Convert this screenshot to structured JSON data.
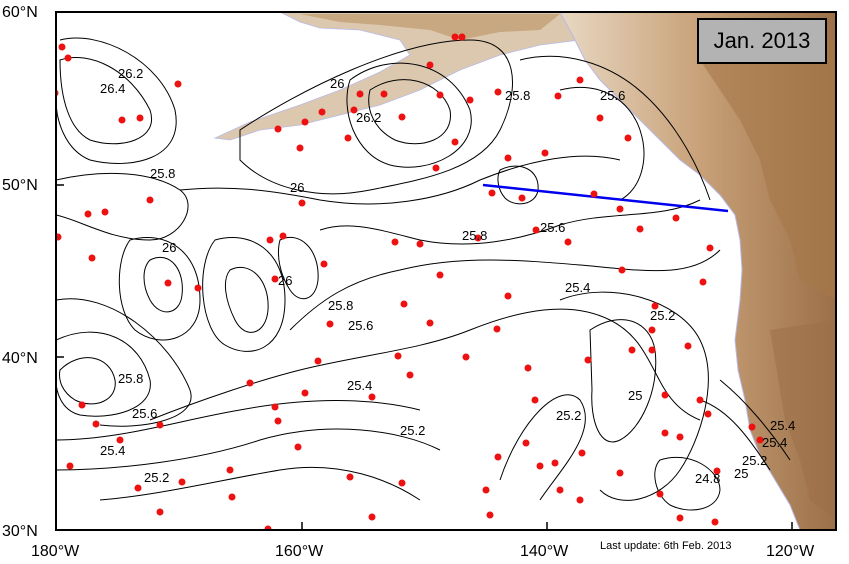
{
  "title_box": {
    "text": "Jan. 2013"
  },
  "footer": {
    "last_update": "Last update: 6th Feb. 2013"
  },
  "axes": {
    "lat_ticks": [
      "60°N",
      "50°N",
      "40°N",
      "30°N"
    ],
    "lon_ticks": [
      "180°W",
      "160°W",
      "140°W",
      "120°W"
    ]
  },
  "contour_labels": [
    "26.2",
    "26.4",
    "26",
    "26.2",
    "25.8",
    "25.6",
    "25.8",
    "26",
    "25.8",
    "25.6",
    "26",
    "26",
    "25.8",
    "25.6",
    "25.4",
    "25.8",
    "25.6",
    "25.4",
    "25.4",
    "25.2",
    "25.2",
    "25.2",
    "25.2",
    "25",
    "24.8",
    "25",
    "25.2",
    "25.4",
    "25.4"
  ],
  "colors": {
    "land_light": "#d9c2a6",
    "land_dark": "#a67c52",
    "float_marker": "#ee1111",
    "section_line": "#0000ee",
    "contour": "#000000"
  },
  "section_line_label": "blue section line"
}
